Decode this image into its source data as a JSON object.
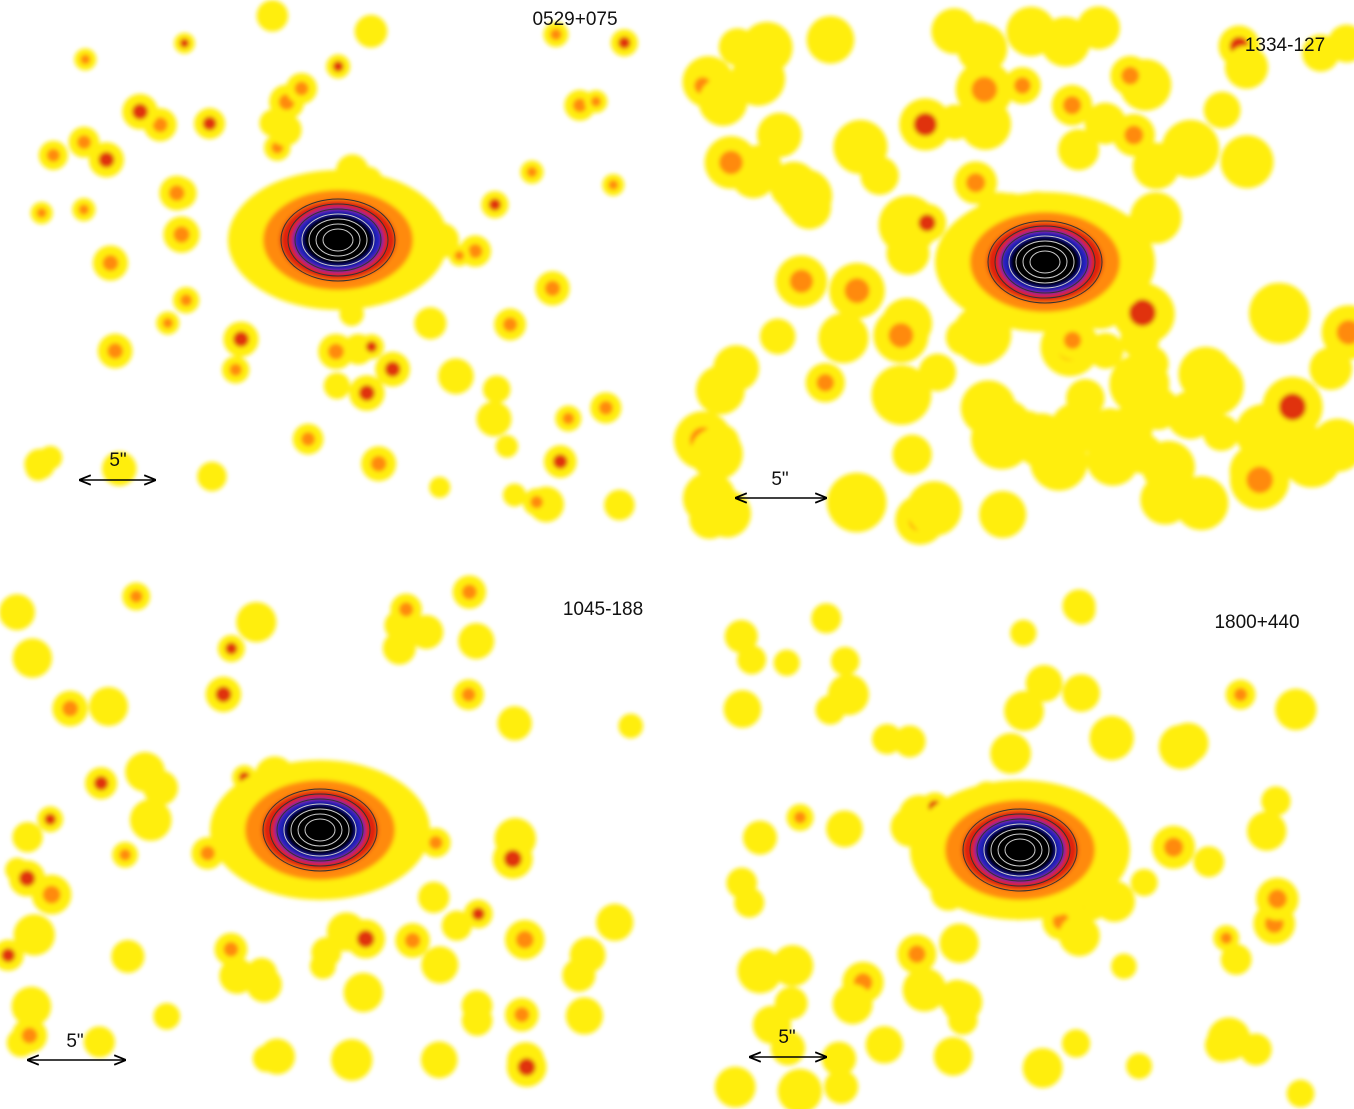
{
  "panels": [
    {
      "label": "0529+075",
      "scale": "5\""
    },
    {
      "label": "1334-127",
      "scale": "5\""
    },
    {
      "label": "1045-188",
      "scale": "5\""
    },
    {
      "label": "1800+440",
      "scale": "5\""
    }
  ]
}
